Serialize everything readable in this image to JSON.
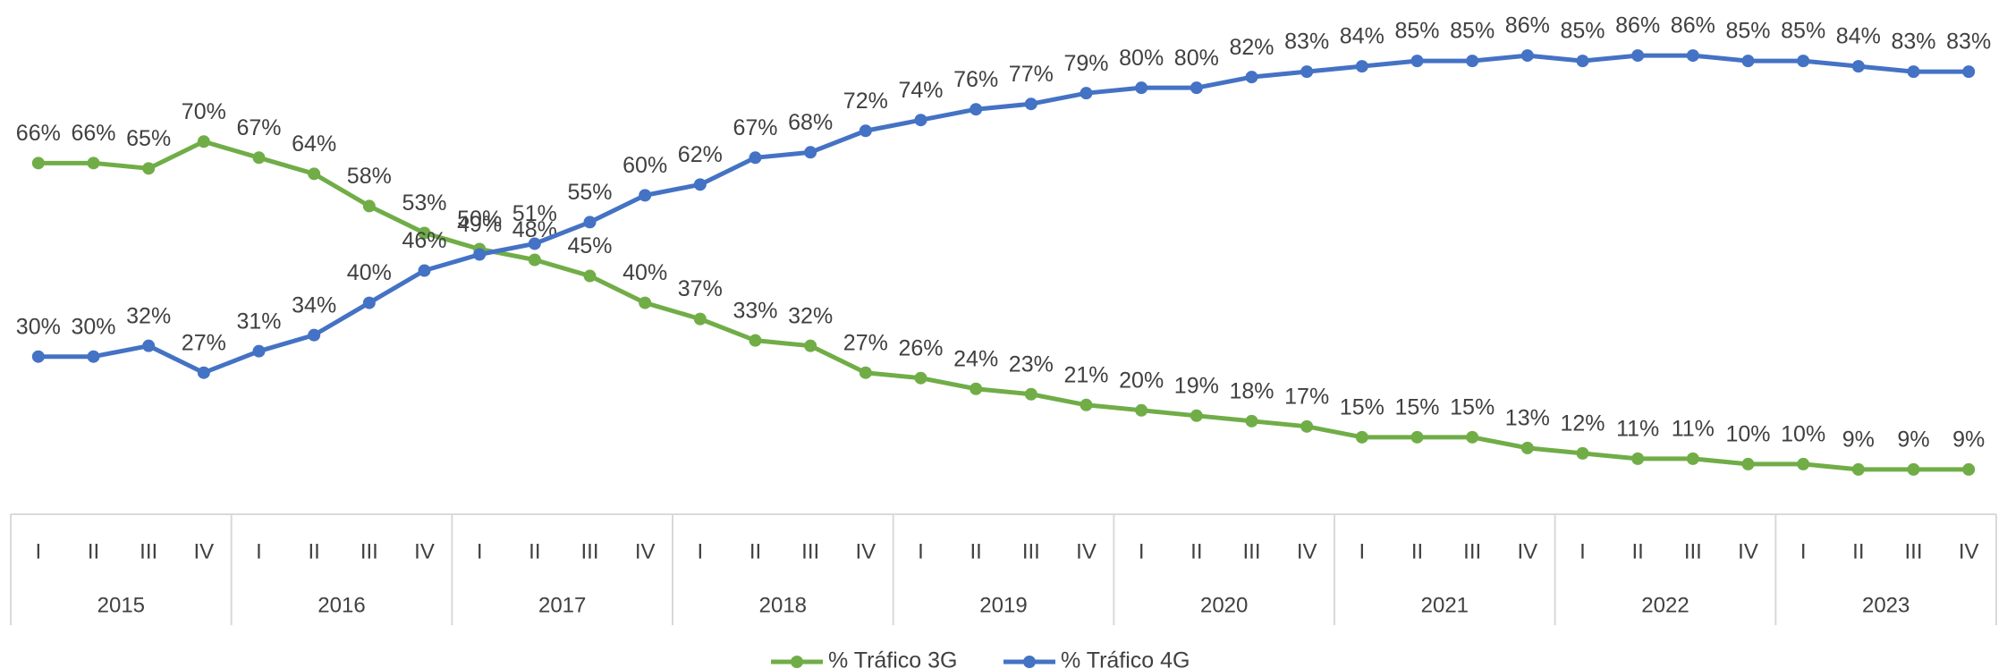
{
  "chart_data": {
    "type": "line",
    "categories": [
      "I",
      "II",
      "III",
      "IV",
      "I",
      "II",
      "III",
      "IV",
      "I",
      "II",
      "III",
      "IV",
      "I",
      "II",
      "III",
      "IV",
      "I",
      "II",
      "III",
      "IV",
      "I",
      "II",
      "III",
      "IV",
      "I",
      "II",
      "III",
      "IV",
      "I",
      "II",
      "III",
      "IV",
      "I",
      "II",
      "III",
      "IV"
    ],
    "category_groups": [
      "2015",
      "2016",
      "2017",
      "2018",
      "2019",
      "2020",
      "2021",
      "2022",
      "2023"
    ],
    "ylim": [
      0,
      96
    ],
    "legend": "bottom",
    "series": [
      {
        "name": "% Tráfico 3G",
        "color": "#70ad47",
        "values": [
          66,
          66,
          65,
          70,
          67,
          64,
          58,
          53,
          50,
          48,
          45,
          40,
          37,
          33,
          32,
          27,
          26,
          24,
          23,
          21,
          20,
          19,
          18,
          17,
          15,
          15,
          15,
          13,
          12,
          11,
          11,
          10,
          10,
          9,
          9,
          9
        ],
        "value_labels": [
          "66%",
          "66%",
          "65%",
          "70%",
          "67%",
          "64%",
          "58%",
          "53%",
          "50%",
          "48%",
          "45%",
          "40%",
          "37%",
          "33%",
          "32%",
          "27%",
          "26%",
          "24%",
          "23%",
          "21%",
          "20%",
          "19%",
          "18%",
          "17%",
          "15%",
          "15%",
          "15%",
          "13%",
          "12%",
          "11%",
          "11%",
          "10%",
          "10%",
          "9%",
          "9%",
          "9%"
        ]
      },
      {
        "name": "% Tráfico 4G",
        "color": "#4472c4",
        "values": [
          30,
          30,
          32,
          27,
          31,
          34,
          40,
          46,
          49,
          51,
          55,
          60,
          62,
          67,
          68,
          72,
          74,
          76,
          77,
          79,
          80,
          80,
          82,
          83,
          84,
          85,
          85,
          86,
          85,
          86,
          86,
          85,
          85,
          84,
          83,
          83
        ],
        "value_labels": [
          "30%",
          "30%",
          "32%",
          "27%",
          "31%",
          "34%",
          "40%",
          "46%",
          "49%",
          "51%",
          "55%",
          "60%",
          "62%",
          "67%",
          "68%",
          "72%",
          "74%",
          "76%",
          "77%",
          "79%",
          "80%",
          "80%",
          "82%",
          "83%",
          "84%",
          "85%",
          "85%",
          "86%",
          "85%",
          "86%",
          "86%",
          "85%",
          "85%",
          "84%",
          "83%",
          "83%"
        ]
      }
    ]
  }
}
